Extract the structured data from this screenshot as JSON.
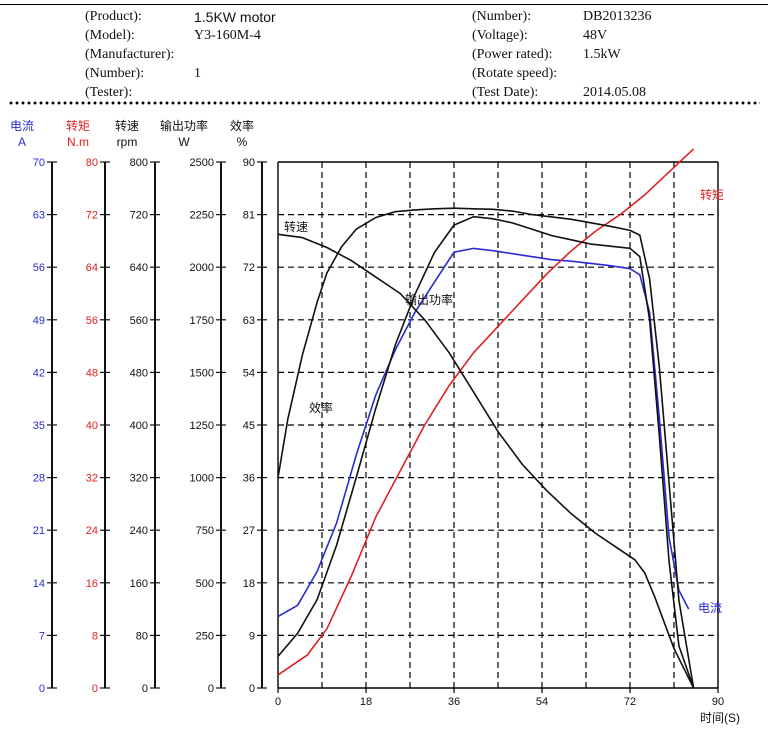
{
  "header": {
    "left": [
      {
        "label": "(Product):",
        "value": "1.5KW motor"
      },
      {
        "label": "(Model):",
        "value": "Y3-160M-4"
      },
      {
        "label": "(Manufacturer):",
        "value": ""
      },
      {
        "label": "(Number):",
        "value": "1"
      },
      {
        "label": "(Tester):",
        "value": ""
      }
    ],
    "right": [
      {
        "label": "(Number):",
        "value": "DB2013236"
      },
      {
        "label": "(Voltage):",
        "value": "48V"
      },
      {
        "label": "(Power rated):",
        "value": "1.5kW"
      },
      {
        "label": "(Rotate speed):",
        "value": ""
      },
      {
        "label": "(Test Date):",
        "value": "2014.05.08"
      }
    ]
  },
  "colors": {
    "current": "#2b2bd6",
    "torque": "#e02020",
    "black": "#111111",
    "grid": "#000000"
  },
  "chart_data": {
    "type": "line",
    "xlabel": "时间(S)",
    "xlim": [
      0,
      90
    ],
    "x_ticks": [
      "0",
      "18",
      "36",
      "54",
      "72",
      "90"
    ],
    "grid": true,
    "axes": [
      {
        "name": "电流",
        "unit": "A",
        "color": "#2b2bd6",
        "range": [
          0,
          70
        ],
        "ticks": [
          "0",
          "7",
          "14",
          "21",
          "28",
          "35",
          "42",
          "49",
          "56",
          "63",
          "70"
        ]
      },
      {
        "name": "转矩",
        "unit": "N.m",
        "color": "#e02020",
        "range": [
          0,
          80
        ],
        "ticks": [
          "0",
          "8",
          "16",
          "24",
          "32",
          "40",
          "48",
          "56",
          "64",
          "72",
          "80"
        ]
      },
      {
        "name": "转速",
        "unit": "rpm",
        "color": "#111111",
        "range": [
          0,
          800
        ],
        "ticks": [
          "0",
          "80",
          "160",
          "240",
          "320",
          "400",
          "480",
          "560",
          "640",
          "720",
          "800"
        ]
      },
      {
        "name": "输出功率",
        "unit": "W",
        "color": "#111111",
        "range": [
          0,
          2500
        ],
        "ticks": [
          "0",
          "250",
          "500",
          "750",
          "1000",
          "1250",
          "1500",
          "1750",
          "2000",
          "2250",
          "2500"
        ]
      },
      {
        "name": "效率",
        "unit": "%",
        "color": "#111111",
        "range": [
          0,
          90
        ],
        "ticks": [
          "0",
          "9",
          "18",
          "27",
          "36",
          "45",
          "54",
          "63",
          "72",
          "81",
          "90"
        ]
      }
    ],
    "series": [
      {
        "name": "电流",
        "color": "#2b2bd6",
        "axis": 0,
        "x": [
          0,
          4,
          8,
          12,
          16,
          20,
          24,
          28,
          32,
          36,
          40,
          44,
          48,
          52,
          56,
          60,
          64,
          68,
          72,
          74,
          76,
          78,
          80,
          82,
          84
        ],
        "y": [
          9.5,
          11,
          15.5,
          22,
          31,
          39,
          45,
          50,
          54,
          58,
          58.5,
          58.2,
          57.8,
          57.4,
          57,
          56.8,
          56.5,
          56.2,
          55.8,
          55,
          50,
          36,
          20,
          13,
          10.5
        ]
      },
      {
        "name": "转矩",
        "color": "#e02020",
        "axis": 1,
        "x": [
          0,
          6,
          10,
          15,
          20,
          25,
          30,
          35,
          40,
          45,
          50,
          55,
          60,
          65,
          70,
          75,
          80,
          85
        ],
        "y": [
          2,
          5,
          9,
          17,
          26,
          33,
          40,
          46,
          51,
          55,
          59,
          63,
          66.5,
          69.5,
          72,
          75,
          78.5,
          82
        ]
      },
      {
        "name": "转速",
        "color": "#111111",
        "axis": 2,
        "x": [
          0,
          5,
          10,
          15,
          20,
          25,
          30,
          35,
          40,
          45,
          50,
          55,
          60,
          65,
          70,
          73,
          75,
          77,
          79,
          81,
          83,
          85
        ],
        "y": [
          690,
          685,
          670,
          650,
          625,
          600,
          560,
          510,
          450,
          390,
          340,
          300,
          265,
          235,
          210,
          195,
          175,
          140,
          100,
          60,
          30,
          0
        ]
      },
      {
        "name": "输出功率",
        "color": "#111111",
        "axis": 3,
        "x": [
          0,
          4,
          8,
          12,
          16,
          20,
          24,
          28,
          32,
          36,
          40,
          44,
          48,
          52,
          56,
          60,
          64,
          68,
          72,
          74,
          76,
          78,
          80,
          82,
          85
        ],
        "y": [
          150,
          260,
          420,
          680,
          1000,
          1330,
          1630,
          1870,
          2070,
          2200,
          2240,
          2230,
          2210,
          2180,
          2150,
          2130,
          2110,
          2100,
          2090,
          2050,
          1750,
          1200,
          600,
          200,
          0
        ]
      },
      {
        "name": "效率",
        "color": "#111111",
        "axis": 4,
        "x": [
          0,
          2,
          5,
          8,
          10,
          13,
          16,
          20,
          24,
          28,
          32,
          36,
          40,
          44,
          48,
          52,
          56,
          60,
          64,
          68,
          72,
          74,
          76,
          78,
          80,
          82,
          85
        ],
        "y": [
          36,
          46,
          57,
          66,
          71,
          75.5,
          78.5,
          80.5,
          81.5,
          81.8,
          82,
          82.1,
          82,
          81.9,
          81.6,
          81,
          80.6,
          80.2,
          79.6,
          79,
          78.3,
          77.5,
          70,
          55,
          35,
          15,
          0
        ]
      }
    ],
    "annotations": [
      {
        "text": "转矩",
        "color": "#e02020"
      },
      {
        "text": "转速",
        "color": "#111111"
      },
      {
        "text": "输出功率",
        "color": "#111111"
      },
      {
        "text": "效率",
        "color": "#111111"
      },
      {
        "text": "电流",
        "color": "#2b2bd6"
      }
    ]
  }
}
